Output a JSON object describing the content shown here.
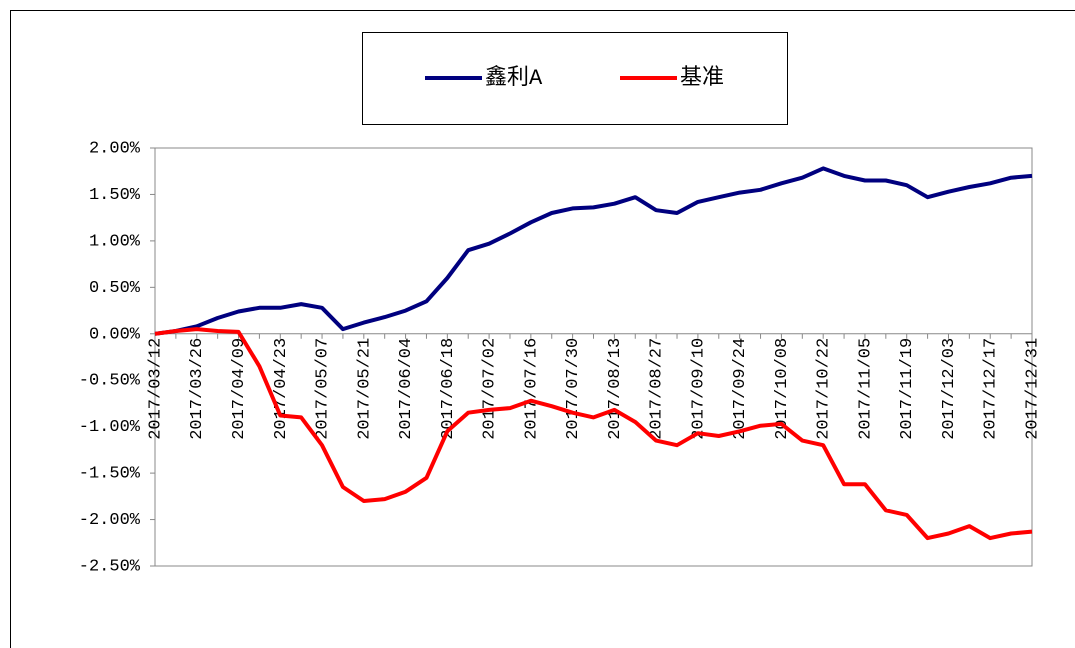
{
  "chart_data": {
    "type": "line",
    "categories": [
      "2017/03/12",
      null,
      "2017/03/26",
      null,
      "2017/04/09",
      null,
      "2017/04/23",
      null,
      "2017/05/07",
      null,
      "2017/05/21",
      null,
      "2017/06/04",
      null,
      "2017/06/18",
      null,
      "2017/07/02",
      null,
      "2017/07/16",
      null,
      "2017/07/30",
      null,
      "2017/08/13",
      null,
      "2017/08/27",
      null,
      "2017/09/10",
      null,
      "2017/09/24",
      null,
      "2017/10/08",
      null,
      "2017/10/22",
      null,
      "2017/11/05",
      null,
      "2017/11/19",
      null,
      "2017/12/03",
      null,
      "2017/12/17",
      null,
      "2017/12/31"
    ],
    "series": [
      {
        "name": "鑫利A",
        "color": "#00007f",
        "values": [
          0.0,
          0.03,
          0.08,
          0.17,
          0.24,
          0.28,
          0.28,
          0.32,
          0.28,
          0.05,
          0.12,
          0.18,
          0.25,
          0.35,
          0.6,
          0.9,
          0.97,
          1.08,
          1.2,
          1.3,
          1.35,
          1.36,
          1.4,
          1.47,
          1.33,
          1.3,
          1.42,
          1.47,
          1.52,
          1.55,
          1.62,
          1.68,
          1.78,
          1.7,
          1.65,
          1.65,
          1.6,
          1.47,
          1.53,
          1.58,
          1.62,
          1.68,
          1.7
        ]
      },
      {
        "name": "基准",
        "color": "#ff0000",
        "values": [
          0.0,
          0.03,
          0.05,
          0.03,
          0.02,
          -0.35,
          -0.88,
          -0.9,
          -1.2,
          -1.65,
          -1.8,
          -1.78,
          -1.7,
          -1.55,
          -1.05,
          -0.85,
          -0.82,
          -0.8,
          -0.72,
          -0.78,
          -0.85,
          -0.9,
          -0.82,
          -0.95,
          -1.15,
          -1.2,
          -1.07,
          -1.1,
          -1.05,
          -0.99,
          -0.97,
          -1.15,
          -1.2,
          -1.62,
          -1.62,
          -1.9,
          -1.95,
          -2.2,
          -2.15,
          -2.07,
          -2.2,
          -2.15,
          -2.13
        ]
      }
    ],
    "ylim": [
      -2.5,
      2.0
    ],
    "yticks": [
      {
        "value": 2.0,
        "label": "2.00%"
      },
      {
        "value": 1.5,
        "label": "1.50%"
      },
      {
        "value": 1.0,
        "label": "1.00%"
      },
      {
        "value": 0.5,
        "label": "0.50%"
      },
      {
        "value": 0.0,
        "label": "0.00%"
      },
      {
        "value": -0.5,
        "label": "-0.50%"
      },
      {
        "value": -1.0,
        "label": "-1.00%"
      },
      {
        "value": -1.5,
        "label": "-1.50%"
      },
      {
        "value": -2.0,
        "label": "-2.00%"
      },
      {
        "value": -2.5,
        "label": "-2.50%"
      }
    ],
    "legend": "top"
  }
}
